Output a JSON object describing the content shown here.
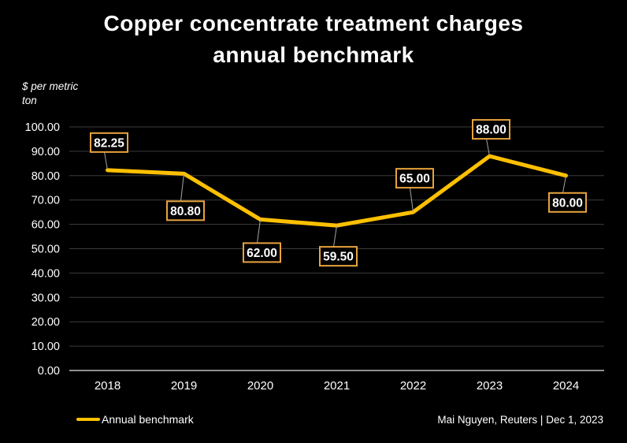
{
  "title": {
    "line1": "Copper concentrate treatment charges",
    "line2": "annual benchmark"
  },
  "y_axis_unit": "$ per metric\nton",
  "legend": {
    "label": "Annual benchmark"
  },
  "attribution": "Mai Nguyen, Reuters | Dec 1, 2023",
  "colors": {
    "background": "#000000",
    "line": "#FFC000",
    "label_border": "#E8A33D",
    "label_fill": "#000000",
    "gridline": "#3C3C3C",
    "axis_line": "#BFBFBF",
    "leader_line": "#A6A6A6",
    "text": "#FFFFFF"
  },
  "chart_data": {
    "type": "line",
    "categories": [
      "2018",
      "2019",
      "2020",
      "2021",
      "2022",
      "2023",
      "2024"
    ],
    "series": [
      {
        "name": "Annual benchmark",
        "values": [
          82.25,
          80.8,
          62.0,
          59.5,
          65.0,
          88.0,
          80.0
        ]
      }
    ],
    "data_labels": [
      "82.25",
      "80.80",
      "62.00",
      "59.50",
      "65.00",
      "88.00",
      "80.00"
    ],
    "label_dy": [
      -35,
      47,
      42,
      39,
      -43,
      -34,
      34
    ],
    "title": "Copper concentrate treatment charges annual benchmark",
    "xlabel": "",
    "ylabel": "$ per metric ton",
    "ylim": [
      0,
      100
    ],
    "ytick_step": 10,
    "ytick_format": "two_decimals",
    "grid": "horizontal",
    "legend_position": "bottom-left"
  }
}
